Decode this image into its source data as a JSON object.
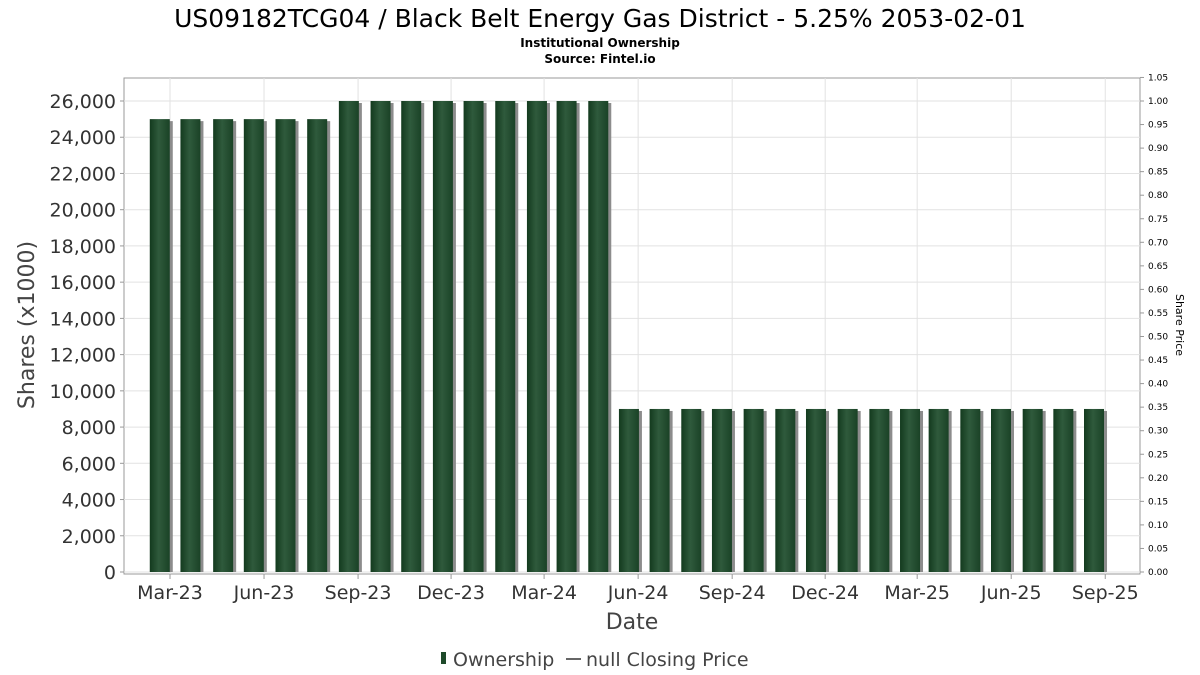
{
  "chart_data": {
    "type": "bar",
    "title": "US09182TCG04 / Black Belt Energy Gas District - 5.25% 2053-02-01",
    "subtitle_1": "Institutional Ownership",
    "subtitle_2": "Source: Fintel.io",
    "xlabel": "Date",
    "ylabel": "Shares (x1000)",
    "y2label": "Share Price",
    "ylim": [
      0,
      27000
    ],
    "y2lim": [
      0,
      1.05
    ],
    "y_ticks": [
      "0",
      "2,000",
      "4,000",
      "6,000",
      "8,000",
      "10,000",
      "12,000",
      "14,000",
      "16,000",
      "18,000",
      "20,000",
      "22,000",
      "24,000",
      "26,000"
    ],
    "y2_ticks": [
      "0.00",
      "0.05",
      "0.10",
      "0.15",
      "0.20",
      "0.25",
      "0.30",
      "0.35",
      "0.40",
      "0.45",
      "0.50",
      "0.55",
      "0.60",
      "0.65",
      "0.70",
      "0.75",
      "0.80",
      "0.85",
      "0.90",
      "0.95",
      "1.00",
      "1.05"
    ],
    "x_range": [
      "2023-01-15",
      "2025-10-05"
    ],
    "x_ticks": [
      {
        "label": "Mar-23",
        "date": "2023-03-01"
      },
      {
        "label": "Jun-23",
        "date": "2023-06-01"
      },
      {
        "label": "Sep-23",
        "date": "2023-09-01"
      },
      {
        "label": "Dec-23",
        "date": "2023-12-01"
      },
      {
        "label": "Mar-24",
        "date": "2024-03-01"
      },
      {
        "label": "Jun-24",
        "date": "2024-06-01"
      },
      {
        "label": "Sep-24",
        "date": "2024-09-01"
      },
      {
        "label": "Dec-24",
        "date": "2024-12-01"
      },
      {
        "label": "Mar-25",
        "date": "2025-03-01"
      },
      {
        "label": "Jun-25",
        "date": "2025-06-01"
      },
      {
        "label": "Sep-25",
        "date": "2025-09-01"
      }
    ],
    "grid": true,
    "legend_position": "bottom-center",
    "series": [
      {
        "name": "Ownership",
        "color": "#1e4a2a",
        "x": [
          "2023-02-19",
          "2023-03-21",
          "2023-04-22",
          "2023-05-22",
          "2023-06-22",
          "2023-07-23",
          "2023-08-23",
          "2023-09-23",
          "2023-10-23",
          "2023-11-23",
          "2023-12-23",
          "2024-01-23",
          "2024-02-23",
          "2024-03-23",
          "2024-04-23",
          "2024-05-23",
          "2024-06-22",
          "2024-07-23",
          "2024-08-22",
          "2024-09-22",
          "2024-10-23",
          "2024-11-22",
          "2024-12-23",
          "2025-01-23",
          "2025-02-22",
          "2025-03-22",
          "2025-04-22",
          "2025-05-22",
          "2025-06-22",
          "2025-07-22",
          "2025-08-21"
        ],
        "values": [
          25000,
          25000,
          25000,
          25000,
          25000,
          25000,
          26000,
          26000,
          26000,
          26000,
          26000,
          26000,
          26000,
          26000,
          26000,
          9000,
          9000,
          9000,
          9000,
          9000,
          9000,
          9000,
          9000,
          9000,
          9000,
          9000,
          9000,
          9000,
          9000,
          9000,
          9000
        ]
      },
      {
        "name": "null Closing Price",
        "color": "#666666",
        "x": [],
        "values": []
      }
    ]
  }
}
